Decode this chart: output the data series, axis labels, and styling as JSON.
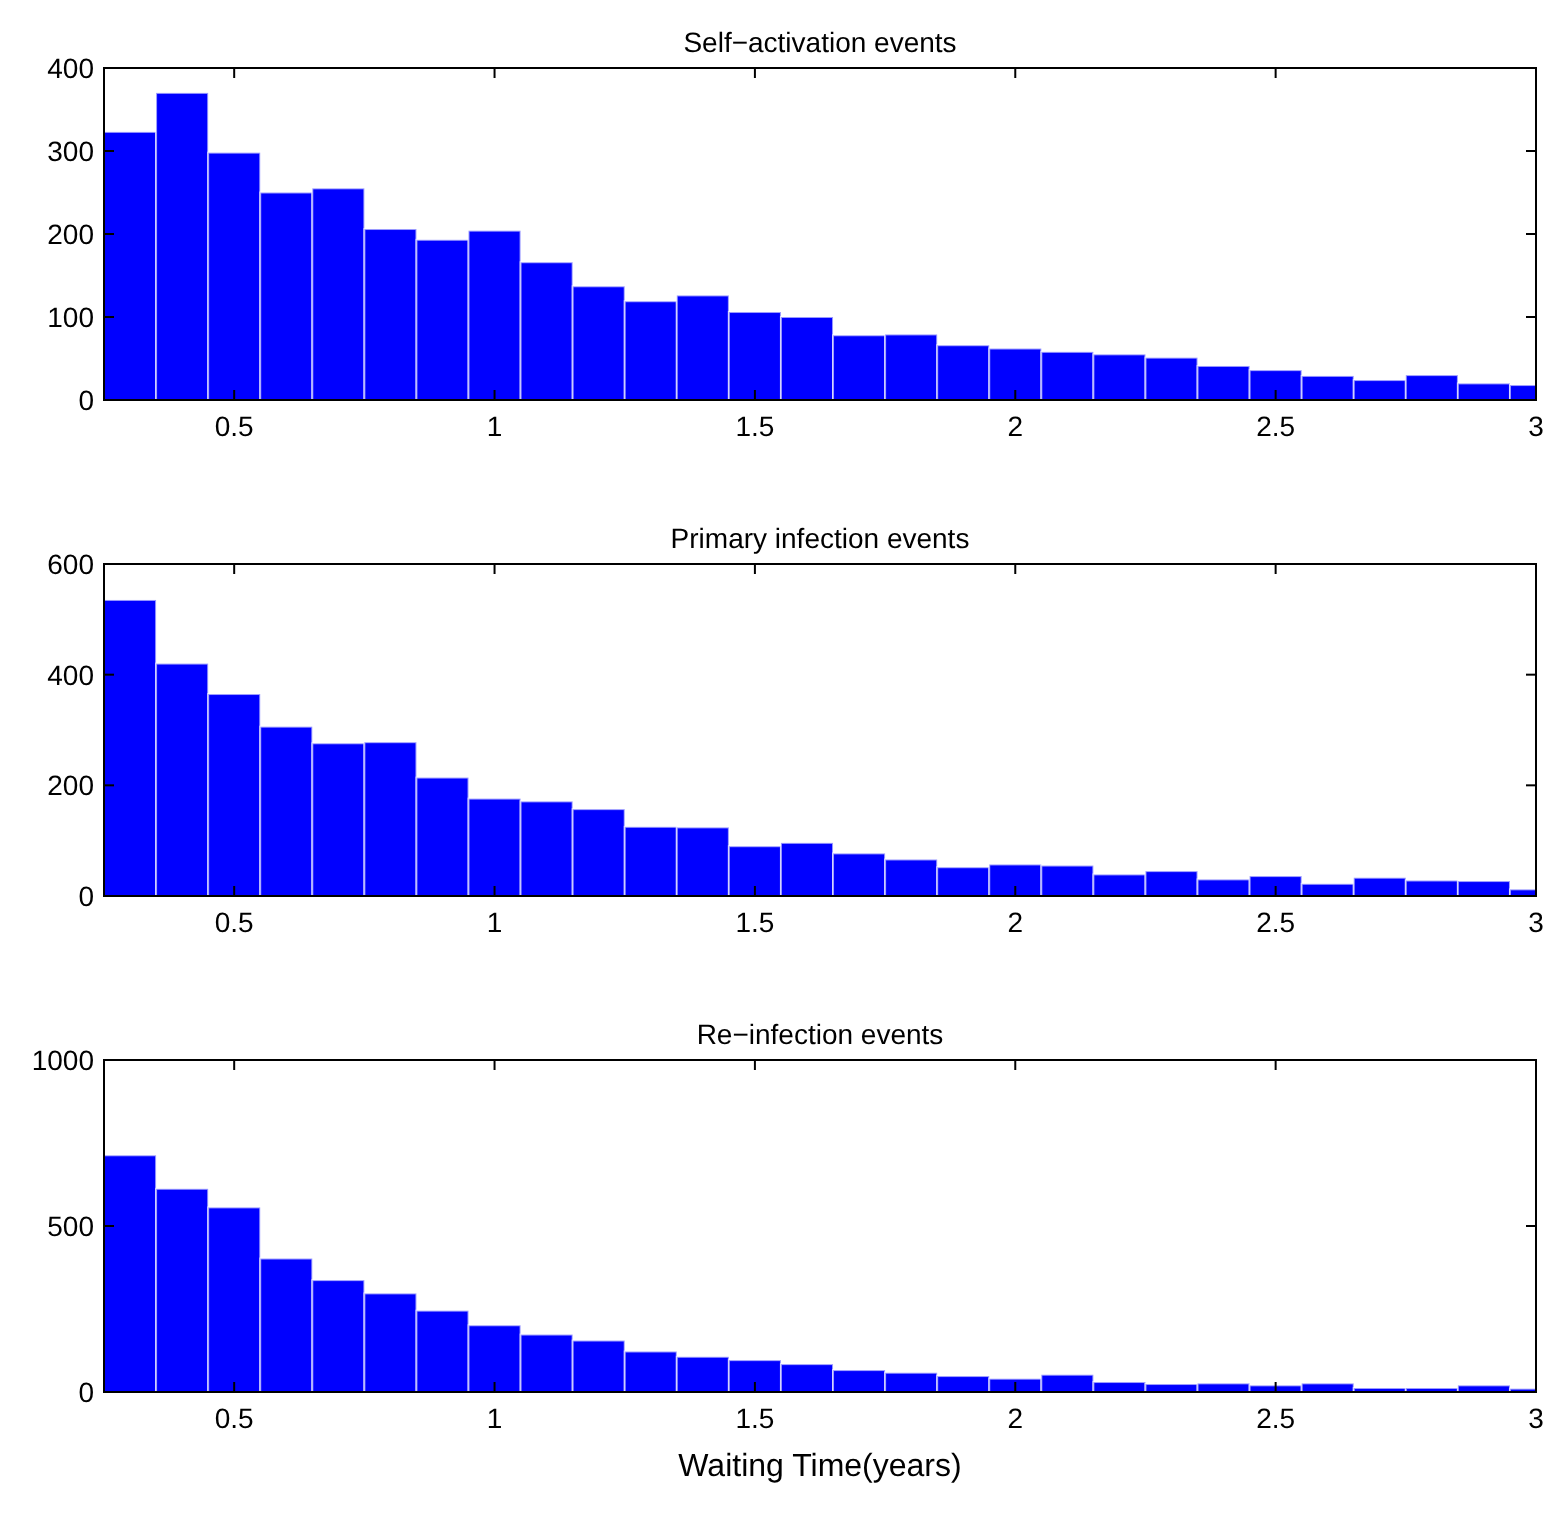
{
  "chart_data": [
    {
      "type": "histogram",
      "title": "Self−activation events",
      "color": "#0000ff",
      "bins": [
        0.25,
        0.35,
        0.45,
        0.55,
        0.65,
        0.75,
        0.85,
        0.95,
        1.05,
        1.15,
        1.25,
        1.35,
        1.45,
        1.55,
        1.65,
        1.75,
        1.85,
        1.95,
        2.05,
        2.15,
        2.25,
        2.35,
        2.45,
        2.55,
        2.65,
        2.75,
        2.85,
        2.95,
        3
      ],
      "values": [
        323,
        370,
        298,
        250,
        255,
        206,
        193,
        204,
        166,
        137,
        119,
        126,
        106,
        100,
        78,
        79,
        66,
        62,
        58,
        55,
        51,
        41,
        36,
        29,
        24,
        30,
        20,
        18
      ],
      "xlim": [
        0.25,
        3
      ],
      "xticks": [
        0.5,
        1,
        1.5,
        2,
        2.5,
        3
      ],
      "ylim": [
        0,
        400
      ],
      "yticks": [
        0,
        100,
        200,
        300,
        400
      ],
      "grid": false
    },
    {
      "type": "histogram",
      "title": "Primary infection events",
      "color": "#0000ff",
      "bins": [
        0.25,
        0.35,
        0.45,
        0.55,
        0.65,
        0.75,
        0.85,
        0.95,
        1.05,
        1.15,
        1.25,
        1.35,
        1.45,
        1.55,
        1.65,
        1.75,
        1.85,
        1.95,
        2.05,
        2.15,
        2.25,
        2.35,
        2.45,
        2.55,
        2.65,
        2.75,
        2.85,
        2.95,
        3
      ],
      "values": [
        535,
        420,
        365,
        306,
        276,
        278,
        214,
        176,
        171,
        157,
        125,
        124,
        90,
        96,
        77,
        66,
        52,
        57,
        55,
        39,
        45,
        30,
        36,
        22,
        33,
        28,
        27,
        12
      ],
      "xlim": [
        0.25,
        3
      ],
      "xticks": [
        0.5,
        1,
        1.5,
        2,
        2.5,
        3
      ],
      "ylim": [
        0,
        600
      ],
      "yticks": [
        0,
        200,
        400,
        600
      ],
      "grid": false
    },
    {
      "type": "histogram",
      "title": "Re−infection events",
      "xlabel": "Waiting Time(years)",
      "color": "#0000ff",
      "bins": [
        0.25,
        0.35,
        0.45,
        0.55,
        0.65,
        0.75,
        0.85,
        0.95,
        1.05,
        1.15,
        1.25,
        1.35,
        1.45,
        1.55,
        1.65,
        1.75,
        1.85,
        1.95,
        2.05,
        2.15,
        2.25,
        2.35,
        2.45,
        2.55,
        2.65,
        2.75,
        2.85,
        2.95,
        3
      ],
      "values": [
        713,
        612,
        556,
        402,
        337,
        297,
        245,
        201,
        173,
        155,
        122,
        106,
        96,
        84,
        66,
        58,
        48,
        40,
        52,
        30,
        24,
        26,
        20,
        26,
        12,
        12,
        20,
        10
      ],
      "xlim": [
        0.25,
        3
      ],
      "xticks": [
        0.5,
        1,
        1.5,
        2,
        2.5,
        3
      ],
      "ylim": [
        0,
        1000
      ],
      "yticks": [
        0,
        500,
        1000
      ],
      "grid": false
    }
  ]
}
